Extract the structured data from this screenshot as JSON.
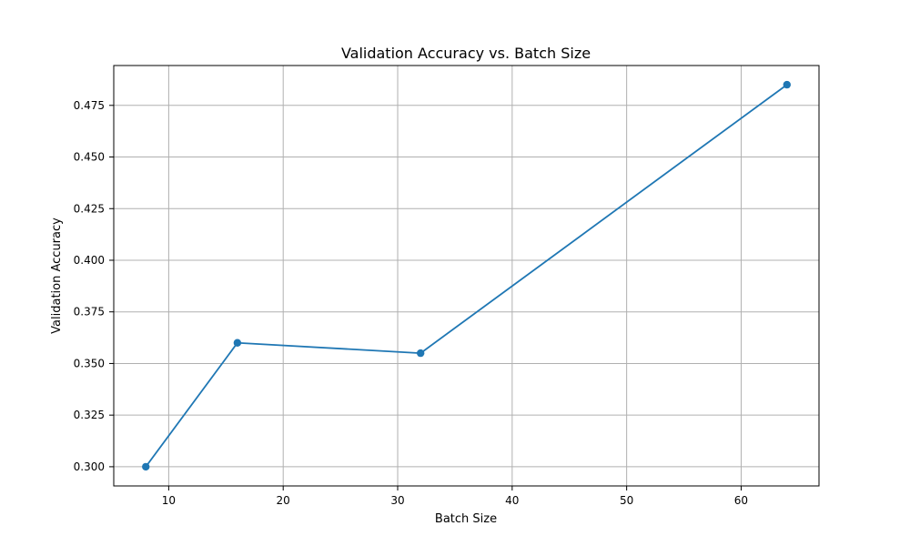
{
  "chart_data": {
    "type": "line",
    "title": "Validation Accuracy vs. Batch Size",
    "xlabel": "Batch Size",
    "ylabel": "Validation Accuracy",
    "x": [
      8,
      16,
      32,
      64
    ],
    "series": [
      {
        "values": [
          0.3,
          0.36,
          0.355,
          0.485
        ],
        "color": "#1f77b4",
        "marker": "circle"
      }
    ],
    "xlim": [
      5.2,
      66.8
    ],
    "ylim": [
      0.2907,
      0.4943
    ],
    "xticks": [
      10,
      20,
      30,
      40,
      50,
      60
    ],
    "yticks": [
      0.3,
      0.325,
      0.35,
      0.375,
      0.4,
      0.425,
      0.45,
      0.475
    ],
    "grid": true
  }
}
